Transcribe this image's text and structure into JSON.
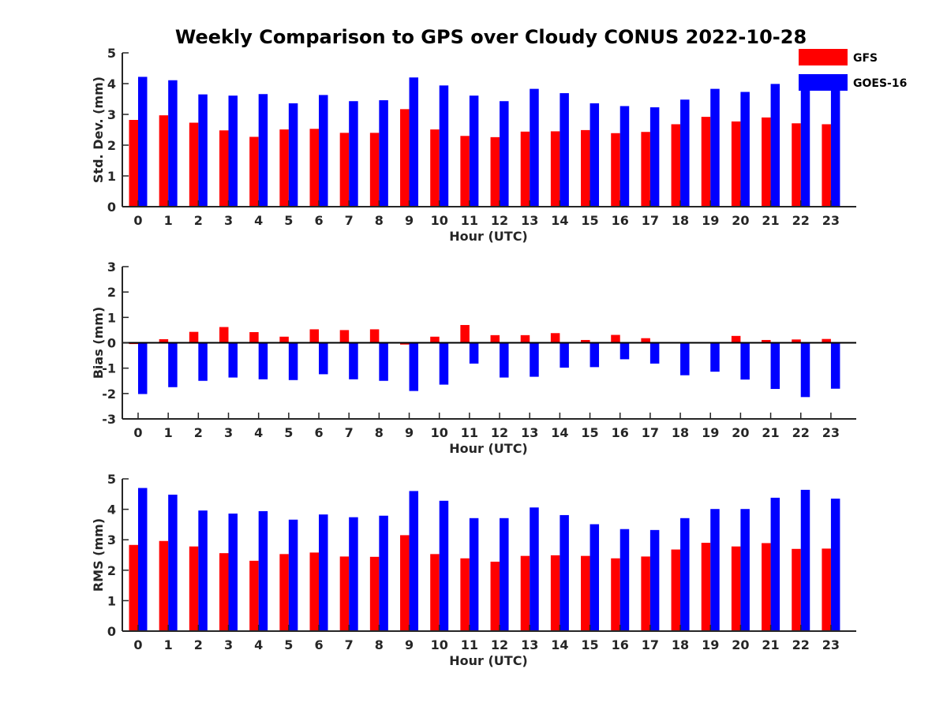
{
  "colors": {
    "gfs": "#ff0000",
    "goes": "#0000ff",
    "axis": "#262626"
  },
  "chart_data": {
    "title": "Weekly Comparison to GPS over Cloudy CONUS 2022-10-28",
    "legend": {
      "placement": "top-right",
      "entries": [
        "GFS",
        "GOES-16"
      ]
    },
    "categories": [
      "0",
      "1",
      "2",
      "3",
      "4",
      "5",
      "6",
      "7",
      "8",
      "9",
      "10",
      "11",
      "12",
      "13",
      "14",
      "15",
      "16",
      "17",
      "18",
      "19",
      "20",
      "21",
      "22",
      "23"
    ],
    "panels": [
      {
        "type": "bar",
        "ylabel": "Std. Dev. (mm)",
        "xlabel": "Hour (UTC)",
        "ylim": [
          0,
          5
        ],
        "yticks": [
          0,
          1,
          2,
          3,
          4,
          5
        ],
        "series": [
          {
            "name": "GFS",
            "values": [
              2.82,
              2.97,
              2.73,
              2.48,
              2.27,
              2.51,
              2.53,
              2.4,
              2.4,
              3.17,
              2.51,
              2.3,
              2.26,
              2.44,
              2.45,
              2.49,
              2.39,
              2.43,
              2.68,
              2.92,
              2.77,
              2.9,
              2.71,
              2.68
            ]
          },
          {
            "name": "GOES-16",
            "values": [
              4.22,
              4.11,
              3.65,
              3.61,
              3.66,
              3.36,
              3.63,
              3.43,
              3.46,
              4.2,
              3.94,
              3.61,
              3.43,
              3.83,
              3.69,
              3.36,
              3.27,
              3.23,
              3.48,
              3.83,
              3.73,
              3.99,
              4.08,
              3.89
            ]
          }
        ]
      },
      {
        "type": "bar",
        "ylabel": "Bias (mm)",
        "xlabel": "Hour (UTC)",
        "ylim": [
          -3,
          3
        ],
        "yticks": [
          -3,
          -2,
          -1,
          0,
          1,
          2,
          3
        ],
        "series": [
          {
            "name": "GFS",
            "values": [
              -0.05,
              0.14,
              0.43,
              0.62,
              0.42,
              0.24,
              0.53,
              0.5,
              0.53,
              -0.07,
              0.24,
              0.7,
              0.3,
              0.3,
              0.38,
              0.11,
              0.31,
              0.18,
              -0.03,
              0.02,
              0.27,
              0.11,
              0.13,
              0.15
            ]
          },
          {
            "name": "GOES-16",
            "values": [
              -2.02,
              -1.75,
              -1.5,
              -1.37,
              -1.44,
              -1.47,
              -1.24,
              -1.44,
              -1.5,
              -1.9,
              -1.65,
              -0.82,
              -1.37,
              -1.34,
              -0.98,
              -0.96,
              -0.65,
              -0.82,
              -1.28,
              -1.14,
              -1.45,
              -1.82,
              -2.14,
              -1.81
            ]
          }
        ]
      },
      {
        "type": "bar",
        "ylabel": "RMS (mm)",
        "xlabel": "Hour (UTC)",
        "ylim": [
          0,
          5
        ],
        "yticks": [
          0,
          1,
          2,
          3,
          4,
          5
        ],
        "series": [
          {
            "name": "GFS",
            "values": [
              2.83,
              2.96,
              2.78,
              2.56,
              2.31,
              2.53,
              2.58,
              2.45,
              2.44,
              3.15,
              2.53,
              2.39,
              2.28,
              2.47,
              2.49,
              2.47,
              2.39,
              2.45,
              2.68,
              2.9,
              2.78,
              2.89,
              2.7,
              2.71
            ]
          },
          {
            "name": "GOES-16",
            "values": [
              4.7,
              4.48,
              3.96,
              3.86,
              3.94,
              3.66,
              3.83,
              3.74,
              3.79,
              4.6,
              4.28,
              3.71,
              3.71,
              4.06,
              3.81,
              3.51,
              3.35,
              3.32,
              3.71,
              4.01,
              4.01,
              4.38,
              4.64,
              4.35
            ]
          }
        ]
      }
    ]
  }
}
